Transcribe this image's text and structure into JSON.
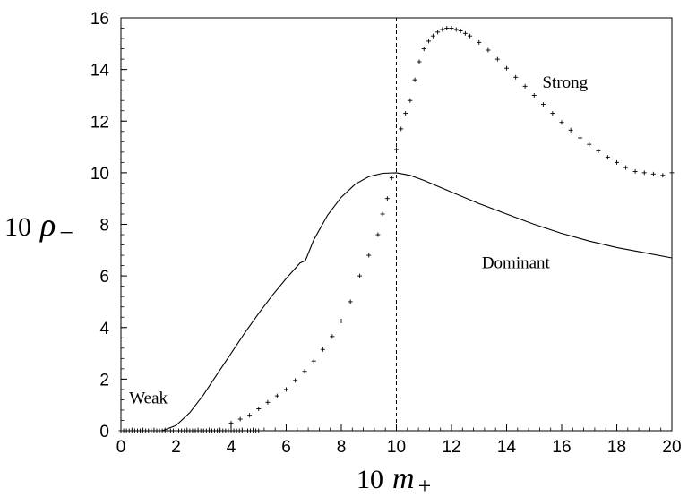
{
  "chart_data": {
    "type": "scatter",
    "xlim": [
      0,
      20
    ],
    "ylim": [
      0,
      16
    ],
    "x_ticks": [
      "0",
      "2",
      "4",
      "6",
      "8",
      "10",
      "12",
      "14",
      "16",
      "18",
      "20"
    ],
    "y_ticks": [
      "0",
      "2",
      "4",
      "6",
      "8",
      "10",
      "12",
      "14",
      "16"
    ],
    "xlabel": {
      "prefix": "10",
      "symbol": "m",
      "sub": "+"
    },
    "ylabel": {
      "prefix": "10",
      "symbol": "ρ",
      "sub": "−"
    },
    "annotations": [
      {
        "text": "Weak",
        "x": 0.3,
        "y": 1.05
      },
      {
        "text": "Strong",
        "x": 15.3,
        "y": 13.3
      },
      {
        "text": "Dominant",
        "x": 13.1,
        "y": 6.3
      }
    ],
    "vline_x": 10,
    "series": [
      {
        "style": "line",
        "x": [
          0,
          1.5,
          2,
          2.5,
          3,
          3.5,
          4,
          4.5,
          5,
          5.5,
          6,
          6.5,
          6.7,
          7,
          7.5,
          8,
          8.5,
          9,
          9.5,
          10,
          10.5,
          11,
          12,
          13,
          14,
          15,
          16,
          17,
          18,
          19,
          20
        ],
        "y": [
          0,
          0,
          0.2,
          0.7,
          1.4,
          2.2,
          3.0,
          3.8,
          4.55,
          5.25,
          5.9,
          6.5,
          6.6,
          7.4,
          8.35,
          9.05,
          9.55,
          9.85,
          9.98,
          10.0,
          9.9,
          9.7,
          9.25,
          8.8,
          8.4,
          8.0,
          7.65,
          7.35,
          7.1,
          6.9,
          6.7
        ]
      },
      {
        "style": "markers",
        "marker": "+",
        "x": [
          0.0,
          0.1,
          0.2,
          0.3,
          0.4,
          0.5,
          0.6,
          0.7,
          0.8,
          0.9,
          1.0,
          1.1,
          1.2,
          1.3,
          1.4,
          1.5,
          1.6,
          1.7,
          1.8,
          1.9,
          2.0,
          2.1,
          2.2,
          2.3,
          2.4,
          2.5,
          2.6,
          2.7,
          2.8,
          2.9,
          3.0,
          3.1,
          3.2,
          3.3,
          3.4,
          3.5,
          3.6,
          3.7,
          3.8,
          3.9,
          4.0,
          4.1,
          4.2,
          4.3,
          4.4,
          4.5,
          4.6,
          4.7,
          4.8,
          4.9,
          5.0,
          4.0,
          4.33,
          4.67,
          5.0,
          5.33,
          5.67,
          6.0,
          6.33,
          6.67,
          7.0,
          7.33,
          7.67,
          8.0,
          8.33,
          8.67,
          9.0,
          9.33,
          9.5,
          9.67,
          9.83,
          10.0,
          10.17,
          10.33,
          10.5,
          10.67,
          10.83,
          11.0,
          11.17,
          11.33,
          11.5,
          11.67,
          11.83,
          12.0,
          12.17,
          12.33,
          12.5,
          12.67,
          13.0,
          13.33,
          13.67,
          14.0,
          14.33,
          14.67,
          15.0,
          15.33,
          15.67,
          16.0,
          16.33,
          16.67,
          17.0,
          17.33,
          17.67,
          18.0,
          18.33,
          18.67,
          19.0,
          19.33,
          19.67,
          20.0
        ],
        "y": [
          0,
          0,
          0,
          0,
          0,
          0,
          0,
          0,
          0,
          0,
          0,
          0,
          0,
          0,
          0,
          0,
          0,
          0,
          0,
          0,
          0,
          0,
          0,
          0,
          0,
          0,
          0,
          0,
          0,
          0,
          0,
          0,
          0,
          0,
          0,
          0,
          0,
          0,
          0,
          0,
          0,
          0,
          0,
          0,
          0,
          0,
          0,
          0,
          0,
          0,
          0,
          0.3,
          0.45,
          0.6,
          0.85,
          1.1,
          1.35,
          1.6,
          1.95,
          2.3,
          2.7,
          3.15,
          3.65,
          4.25,
          5.0,
          6.0,
          6.8,
          7.6,
          8.4,
          9.0,
          9.8,
          10.9,
          11.7,
          12.3,
          12.8,
          13.6,
          14.3,
          14.8,
          15.1,
          15.3,
          15.45,
          15.55,
          15.6,
          15.6,
          15.55,
          15.5,
          15.4,
          15.3,
          15.05,
          14.75,
          14.4,
          14.05,
          13.7,
          13.35,
          13.0,
          12.65,
          12.3,
          11.95,
          11.65,
          11.35,
          11.1,
          10.85,
          10.6,
          10.4,
          10.2,
          10.05,
          10.0,
          9.95,
          9.9,
          10.0
        ]
      }
    ]
  }
}
